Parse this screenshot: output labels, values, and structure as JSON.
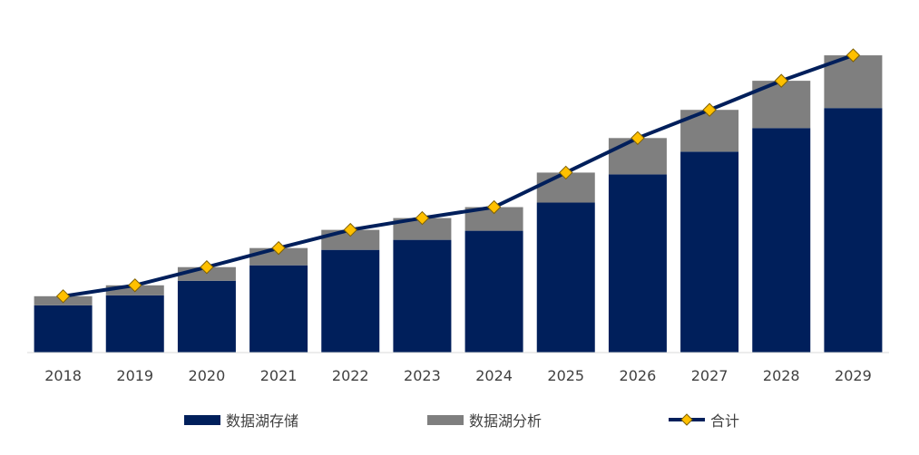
{
  "chart_data": {
    "type": "bar",
    "stacked": true,
    "categories": [
      "2018",
      "2019",
      "2020",
      "2021",
      "2022",
      "2023",
      "2024",
      "2025",
      "2026",
      "2027",
      "2028",
      "2029"
    ],
    "series": [
      {
        "name": "数据湖存储",
        "type": "bar",
        "color": "#001f5b",
        "values": [
          52,
          63,
          79,
          96,
          113,
          124,
          134,
          165,
          196,
          221,
          247,
          269
        ]
      },
      {
        "name": "数据湖分析",
        "type": "bar",
        "color": "#7f7f7f",
        "values": [
          10,
          11,
          15,
          19,
          22,
          24,
          26,
          33,
          40,
          46,
          52,
          58
        ]
      },
      {
        "name": "合计",
        "type": "line",
        "color": "#001f5b",
        "marker_color": "#ffc000",
        "values": [
          62,
          74,
          94,
          115,
          135,
          148,
          160,
          198,
          236,
          267,
          299,
          327
        ]
      }
    ],
    "ylim": [
      0,
      340
    ],
    "grid": false,
    "legend_position": "bottom",
    "title": "",
    "xlabel": "",
    "ylabel": ""
  },
  "legend": {
    "storage_label": "数据湖存储",
    "analysis_label": "数据湖分析",
    "total_label": "合计"
  }
}
